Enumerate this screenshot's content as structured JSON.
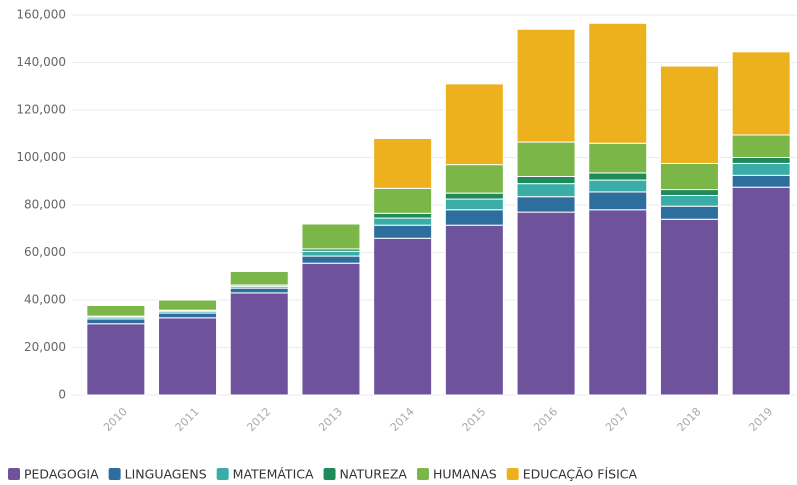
{
  "chart_data": {
    "type": "stacked_bar",
    "categories": [
      "2010",
      "2011",
      "2012",
      "2013",
      "2014",
      "2015",
      "2016",
      "2017",
      "2018",
      "2019"
    ],
    "series": [
      {
        "name": "PEDAGOGIA",
        "color": "#6f529c",
        "values": [
          30000,
          32500,
          43000,
          55500,
          66000,
          71500,
          77000,
          78000,
          74000,
          87500
        ]
      },
      {
        "name": "LINGUAGENS",
        "color": "#2e6e9e",
        "values": [
          2000,
          2000,
          2000,
          3000,
          5500,
          6500,
          6500,
          7500,
          5500,
          5000
        ]
      },
      {
        "name": "MATEMÁTICA",
        "color": "#3aada8",
        "values": [
          800,
          800,
          800,
          2000,
          3000,
          4500,
          5500,
          5000,
          4500,
          5000
        ]
      },
      {
        "name": "NATUREZA",
        "color": "#1f8a5a",
        "values": [
          400,
          400,
          500,
          1000,
          2000,
          2500,
          3000,
          3000,
          2500,
          2500
        ]
      },
      {
        "name": "HUMANAS",
        "color": "#7ab648",
        "values": [
          4500,
          4300,
          5700,
          10500,
          10500,
          12000,
          14500,
          12500,
          11000,
          9500
        ]
      },
      {
        "name": "EDUCAÇÃO FÍSICA",
        "color": "#eeb11e",
        "values": [
          0,
          0,
          0,
          0,
          21000,
          34000,
          47500,
          50500,
          41000,
          35000
        ]
      }
    ],
    "ylim": [
      0,
      160000
    ],
    "yticks": [
      0,
      {
        "value": 20000,
        "label": "20,000"
      },
      {
        "value": 40000,
        "label": "40,000"
      },
      {
        "value": 60000,
        "label": "60,000"
      },
      {
        "value": 80000,
        "label": "80,000"
      },
      {
        "value": 100000,
        "label": "100,000"
      },
      {
        "value": 120000,
        "label": "120,000"
      },
      {
        "value": 140000,
        "label": "140,000"
      },
      {
        "value": 160000,
        "label": "160,000"
      }
    ],
    "grid": true,
    "legend": "bottom"
  }
}
